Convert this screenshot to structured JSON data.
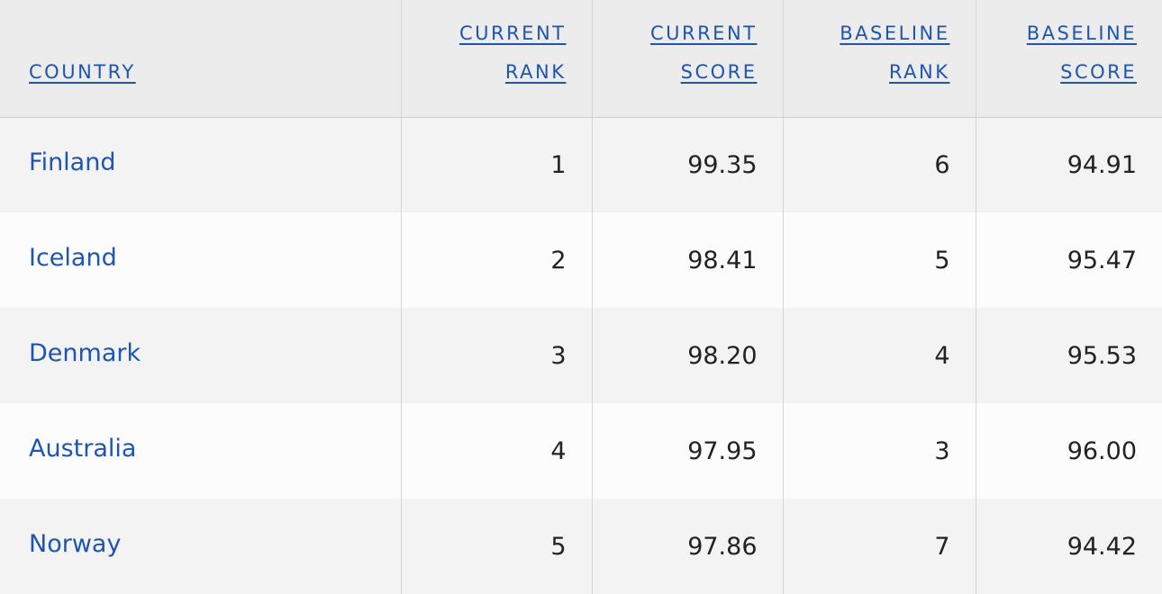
{
  "table": {
    "headers": [
      "COUNTRY",
      "CURRENT RANK",
      "CURRENT SCORE",
      "BASELINE RANK",
      "BASELINE SCORE"
    ],
    "rows": [
      [
        "Finland",
        "1",
        "99.35",
        "6",
        "94.91"
      ],
      [
        "Iceland",
        "2",
        "98.41",
        "5",
        "95.47"
      ],
      [
        "Denmark",
        "3",
        "98.20",
        "4",
        "95.53"
      ],
      [
        "Australia",
        "4",
        "97.95",
        "3",
        "96.00"
      ],
      [
        "Norway",
        "5",
        "97.86",
        "7",
        "94.42"
      ]
    ]
  }
}
